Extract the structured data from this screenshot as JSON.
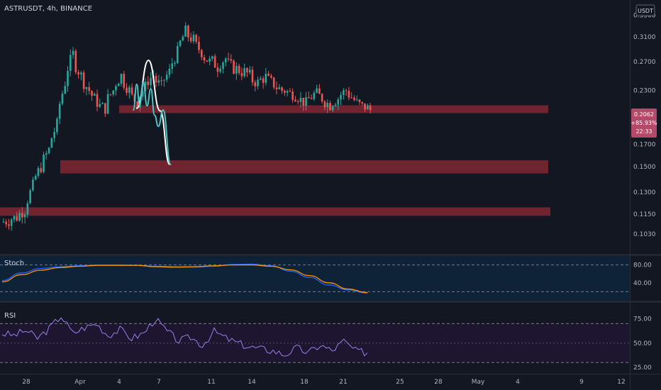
{
  "header": {
    "title": "ASTRUSDT, 4h, BINANCE"
  },
  "price_scale": {
    "currency": "USDT",
    "ticks": [
      "0.3500",
      "0.3100",
      "0.2700",
      "0.2300",
      "0.1700",
      "0.1500",
      "0.1300",
      "0.1150",
      "0.1030"
    ],
    "last_price": {
      "price": "0.2062",
      "change": "+85.93%",
      "countdown": "22:33"
    }
  },
  "stoch": {
    "label": "Stoch",
    "ticks": [
      "80.00",
      "40.00"
    ]
  },
  "rsi": {
    "label": "RSI",
    "ticks": [
      "75.00",
      "50.00",
      "25.00"
    ]
  },
  "time_axis": {
    "ticks": [
      "28",
      "Apr",
      "4",
      "7",
      "11",
      "14",
      "18",
      "21",
      "25",
      "28",
      "May",
      "4",
      "9",
      "12"
    ]
  },
  "chart_data": [
    {
      "type": "candlestick",
      "symbol": "ASTRUSDT",
      "interval": "4h",
      "exchange": "BINANCE",
      "unit": "USDT",
      "last_price": 0.2062,
      "price_range": [
        0.097,
        0.355
      ],
      "x_ticks": [
        "28",
        "Apr",
        "4",
        "7",
        "11",
        "14",
        "18",
        "21",
        "25",
        "28",
        "May",
        "4",
        "9",
        "12"
      ],
      "y_ticks": [
        0.35,
        0.31,
        0.27,
        0.23,
        0.17,
        0.15,
        0.13,
        0.115,
        0.103
      ],
      "price_path": [
        [
          0.11,
          0.111
        ],
        [
          0.112,
          0.113
        ],
        [
          0.114,
          0.118
        ],
        [
          0.12,
          0.135
        ],
        [
          0.138,
          0.15
        ],
        [
          0.152,
          0.165
        ],
        [
          0.17,
          0.19
        ],
        [
          0.2,
          0.24
        ],
        [
          0.25,
          0.282
        ],
        [
          0.27,
          0.25
        ],
        [
          0.245,
          0.23
        ],
        [
          0.228,
          0.215
        ],
        [
          0.212,
          0.208
        ],
        [
          0.215,
          0.23
        ],
        [
          0.235,
          0.25
        ],
        [
          0.245,
          0.23
        ],
        [
          0.225,
          0.215
        ],
        [
          0.22,
          0.235
        ],
        [
          0.24,
          0.25
        ],
        [
          0.245,
          0.235
        ],
        [
          0.24,
          0.255
        ],
        [
          0.26,
          0.285
        ],
        [
          0.29,
          0.32
        ],
        [
          0.315,
          0.305
        ],
        [
          0.3,
          0.285
        ],
        [
          0.28,
          0.27
        ],
        [
          0.275,
          0.262
        ],
        [
          0.265,
          0.275
        ],
        [
          0.27,
          0.26
        ],
        [
          0.262,
          0.255
        ],
        [
          0.258,
          0.25
        ],
        [
          0.245,
          0.24
        ],
        [
          0.242,
          0.248
        ],
        [
          0.246,
          0.238
        ],
        [
          0.236,
          0.23
        ],
        [
          0.232,
          0.226
        ],
        [
          0.228,
          0.222
        ],
        [
          0.22,
          0.214
        ],
        [
          0.216,
          0.225
        ],
        [
          0.228,
          0.22
        ],
        [
          0.218,
          0.212
        ],
        [
          0.214,
          0.22
        ],
        [
          0.222,
          0.23
        ],
        [
          0.228,
          0.218
        ],
        [
          0.216,
          0.21
        ],
        [
          0.212,
          0.206
        ]
      ],
      "support_zones": [
        {
          "top": 0.2115,
          "bottom": 0.2025
        },
        {
          "top": 0.1555,
          "bottom": 0.1445
        },
        {
          "top": 0.1195,
          "bottom": 0.114
        }
      ],
      "projections": [
        {
          "color": "#ffffff",
          "points": [
            [
              24.0,
              0.208
            ],
            [
              26.5,
              0.272
            ],
            [
              29.0,
              0.205
            ],
            [
              31.0,
              0.152
            ]
          ]
        },
        {
          "color": "#4fc3c3",
          "points": [
            [
              23.3,
              0.206
            ],
            [
              24.0,
              0.238
            ],
            [
              24.6,
              0.212
            ],
            [
              25.4,
              0.24
            ],
            [
              26.2,
              0.211
            ],
            [
              27.0,
              0.232
            ],
            [
              27.8,
              0.2
            ],
            [
              28.6,
              0.188
            ],
            [
              29.6,
              0.206
            ],
            [
              31.2,
              0.152
            ]
          ]
        }
      ]
    },
    {
      "type": "line",
      "name": "Stoch",
      "ylim": [
        0,
        100
      ],
      "y_ticks": [
        80,
        40
      ],
      "levels": [
        80,
        20
      ],
      "series": [
        {
          "color": "#2962ff",
          "values": [
            45,
            62,
            72,
            76,
            78,
            80,
            80,
            79,
            77,
            76,
            75,
            77,
            81,
            82,
            78,
            66,
            52,
            35,
            24,
            17
          ]
        },
        {
          "color": "#ff9800",
          "values": [
            42,
            58,
            68,
            74,
            77,
            79,
            79,
            79,
            76,
            75,
            76,
            78,
            80,
            80,
            77,
            69,
            56,
            40,
            26,
            18
          ]
        }
      ]
    },
    {
      "type": "line",
      "name": "RSI",
      "ylim": [
        20,
        90
      ],
      "y_ticks": [
        75,
        50,
        25
      ],
      "levels": [
        70,
        50,
        30
      ],
      "series": [
        {
          "color": "#9c7ee8",
          "values": [
            60,
            58,
            63,
            55,
            65,
            78,
            60,
            66,
            70,
            58,
            64,
            55,
            60,
            75,
            62,
            52,
            56,
            48,
            62,
            55,
            50,
            46,
            44,
            42,
            38,
            45,
            40,
            48,
            42,
            52,
            42,
            40
          ]
        }
      ]
    }
  ]
}
